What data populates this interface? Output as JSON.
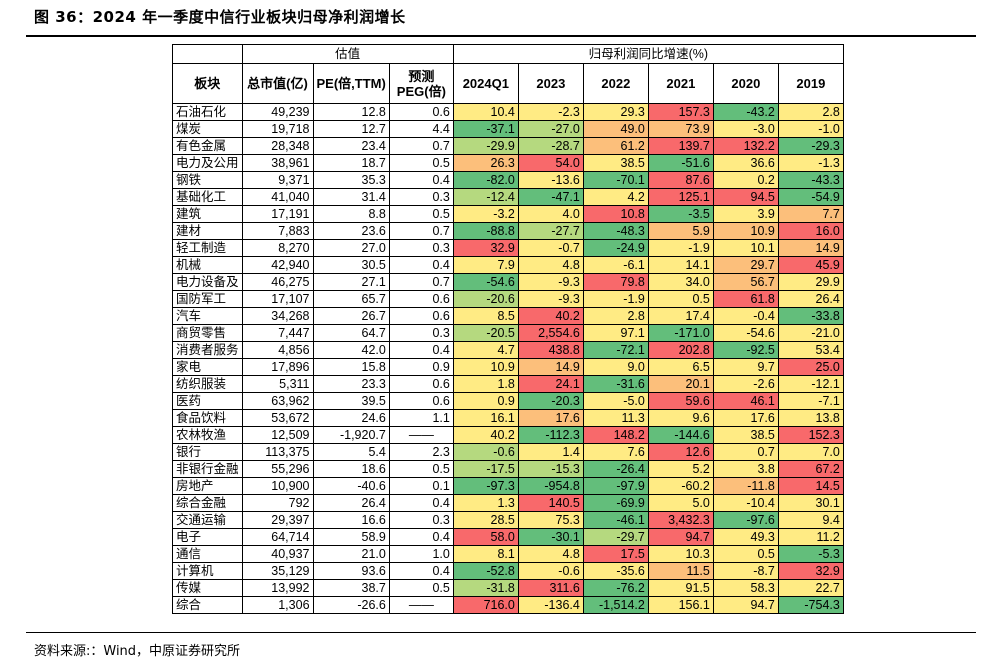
{
  "title": "图 36：2024 年一季度中信行业板块归母净利润增长",
  "source": "资料来源:：Wind，中原证券研究所",
  "header": {
    "valuation_group": "估值",
    "growth_group": "归母利润同比增速(%)",
    "sector": "板块",
    "mktcap": "总市值(亿)",
    "pe": "PE(倍,TTM)",
    "peg": "预测PEG(倍)",
    "years": [
      "2024Q1",
      "2023",
      "2022",
      "2021",
      "2020",
      "2019"
    ]
  },
  "colors": {
    "dark_green": "#63be7b",
    "light_green": "#b5d97f",
    "yellow": "#ffeb84",
    "orange": "#fcbf7b",
    "red": "#f8696b"
  },
  "rows": [
    {
      "sector": "石油石化",
      "mktcap": "49,239",
      "pe": "12.8",
      "peg": "0.6",
      "g": [
        "10.4",
        "-2.3",
        "29.3",
        "157.3",
        "-43.2",
        "2.8"
      ],
      "c": [
        "y",
        "y",
        "y",
        "r",
        "g",
        "y"
      ]
    },
    {
      "sector": "煤炭",
      "mktcap": "19,718",
      "pe": "12.7",
      "peg": "4.4",
      "g": [
        "-37.1",
        "-27.0",
        "49.0",
        "73.9",
        "-3.0",
        "-1.0"
      ],
      "c": [
        "g",
        "lg",
        "o",
        "o",
        "y",
        "y"
      ]
    },
    {
      "sector": "有色金属",
      "mktcap": "28,348",
      "pe": "23.4",
      "peg": "0.7",
      "g": [
        "-29.9",
        "-28.7",
        "61.2",
        "139.7",
        "132.2",
        "-29.3"
      ],
      "c": [
        "lg",
        "lg",
        "o",
        "r",
        "r",
        "g"
      ]
    },
    {
      "sector": "电力及公用",
      "mktcap": "38,961",
      "pe": "18.7",
      "peg": "0.5",
      "g": [
        "26.3",
        "54.0",
        "38.5",
        "-51.6",
        "36.6",
        "-1.3"
      ],
      "c": [
        "o",
        "r",
        "y",
        "g",
        "y",
        "y"
      ]
    },
    {
      "sector": "钢铁",
      "mktcap": "9,371",
      "pe": "35.3",
      "peg": "0.4",
      "g": [
        "-82.0",
        "-13.6",
        "-70.1",
        "87.6",
        "0.2",
        "-43.3"
      ],
      "c": [
        "g",
        "y",
        "g",
        "r",
        "y",
        "g"
      ]
    },
    {
      "sector": "基础化工",
      "mktcap": "41,040",
      "pe": "31.4",
      "peg": "0.3",
      "g": [
        "-12.4",
        "-47.1",
        "4.2",
        "125.1",
        "94.5",
        "-54.9"
      ],
      "c": [
        "lg",
        "g",
        "y",
        "r",
        "r",
        "g"
      ]
    },
    {
      "sector": "建筑",
      "mktcap": "17,191",
      "pe": "8.8",
      "peg": "0.5",
      "g": [
        "-3.2",
        "4.0",
        "10.8",
        "-3.5",
        "3.9",
        "7.7"
      ],
      "c": [
        "y",
        "y",
        "r",
        "g",
        "y",
        "o"
      ]
    },
    {
      "sector": "建材",
      "mktcap": "7,883",
      "pe": "23.6",
      "peg": "0.7",
      "g": [
        "-88.8",
        "-27.7",
        "-48.3",
        "5.9",
        "10.9",
        "16.0"
      ],
      "c": [
        "g",
        "lg",
        "g",
        "o",
        "o",
        "r"
      ]
    },
    {
      "sector": "轻工制造",
      "mktcap": "8,270",
      "pe": "27.0",
      "peg": "0.3",
      "g": [
        "32.9",
        "-0.7",
        "-24.9",
        "-1.9",
        "10.1",
        "14.9"
      ],
      "c": [
        "r",
        "y",
        "g",
        "y",
        "y",
        "o"
      ]
    },
    {
      "sector": "机械",
      "mktcap": "42,940",
      "pe": "30.5",
      "peg": "0.4",
      "g": [
        "7.9",
        "4.8",
        "-6.1",
        "14.1",
        "29.7",
        "45.9"
      ],
      "c": [
        "y",
        "y",
        "y",
        "y",
        "o",
        "r"
      ]
    },
    {
      "sector": "电力设备及",
      "mktcap": "46,275",
      "pe": "27.1",
      "peg": "0.7",
      "g": [
        "-54.6",
        "-9.3",
        "79.8",
        "34.0",
        "56.7",
        "29.9"
      ],
      "c": [
        "g",
        "y",
        "r",
        "y",
        "o",
        "y"
      ]
    },
    {
      "sector": "国防军工",
      "mktcap": "17,107",
      "pe": "65.7",
      "peg": "0.6",
      "g": [
        "-20.6",
        "-9.3",
        "-1.9",
        "0.5",
        "61.8",
        "26.4"
      ],
      "c": [
        "lg",
        "y",
        "y",
        "y",
        "r",
        "y"
      ]
    },
    {
      "sector": "汽车",
      "mktcap": "34,268",
      "pe": "26.7",
      "peg": "0.6",
      "g": [
        "8.5",
        "40.2",
        "2.8",
        "17.4",
        "-0.4",
        "-33.8"
      ],
      "c": [
        "y",
        "r",
        "y",
        "y",
        "y",
        "g"
      ]
    },
    {
      "sector": "商贸零售",
      "mktcap": "7,447",
      "pe": "64.7",
      "peg": "0.3",
      "g": [
        "-20.5",
        "2,554.6",
        "97.1",
        "-171.0",
        "-54.6",
        "-21.0"
      ],
      "c": [
        "lg",
        "r",
        "y",
        "g",
        "y",
        "y"
      ]
    },
    {
      "sector": "消费者服务",
      "mktcap": "4,856",
      "pe": "42.0",
      "peg": "0.4",
      "g": [
        "4.7",
        "438.8",
        "-72.1",
        "202.8",
        "-92.5",
        "53.4"
      ],
      "c": [
        "y",
        "r",
        "g",
        "r",
        "g",
        "y"
      ]
    },
    {
      "sector": "家电",
      "mktcap": "17,896",
      "pe": "15.8",
      "peg": "0.9",
      "g": [
        "10.9",
        "14.9",
        "9.0",
        "6.5",
        "9.7",
        "25.0"
      ],
      "c": [
        "y",
        "o",
        "y",
        "y",
        "y",
        "r"
      ]
    },
    {
      "sector": "纺织服装",
      "mktcap": "5,311",
      "pe": "23.3",
      "peg": "0.6",
      "g": [
        "1.8",
        "24.1",
        "-31.6",
        "20.1",
        "-2.6",
        "-12.1"
      ],
      "c": [
        "y",
        "r",
        "g",
        "o",
        "y",
        "y"
      ]
    },
    {
      "sector": "医药",
      "mktcap": "63,962",
      "pe": "39.5",
      "peg": "0.6",
      "g": [
        "0.9",
        "-20.3",
        "-5.0",
        "59.6",
        "46.1",
        "-7.1"
      ],
      "c": [
        "y",
        "g",
        "y",
        "r",
        "r",
        "y"
      ]
    },
    {
      "sector": "食品饮料",
      "mktcap": "53,672",
      "pe": "24.6",
      "peg": "1.1",
      "g": [
        "16.1",
        "17.6",
        "11.3",
        "9.6",
        "17.6",
        "13.8"
      ],
      "c": [
        "y",
        "o",
        "y",
        "y",
        "y",
        "y"
      ]
    },
    {
      "sector": "农林牧渔",
      "mktcap": "12,509",
      "pe": "-1,920.7",
      "peg": "——",
      "g": [
        "40.2",
        "-112.3",
        "148.2",
        "-144.6",
        "38.5",
        "152.3"
      ],
      "c": [
        "y",
        "g",
        "r",
        "g",
        "y",
        "r"
      ]
    },
    {
      "sector": "银行",
      "mktcap": "113,375",
      "pe": "5.4",
      "peg": "2.3",
      "g": [
        "-0.6",
        "1.4",
        "7.6",
        "12.6",
        "0.7",
        "7.0"
      ],
      "c": [
        "lg",
        "y",
        "y",
        "r",
        "y",
        "y"
      ]
    },
    {
      "sector": "非银行金融",
      "mktcap": "55,296",
      "pe": "18.6",
      "peg": "0.5",
      "g": [
        "-17.5",
        "-15.3",
        "-26.4",
        "5.2",
        "3.8",
        "67.2"
      ],
      "c": [
        "lg",
        "lg",
        "g",
        "y",
        "y",
        "r"
      ]
    },
    {
      "sector": "房地产",
      "mktcap": "10,900",
      "pe": "-40.6",
      "peg": "0.1",
      "g": [
        "-97.3",
        "-954.8",
        "-97.9",
        "-60.2",
        "-11.8",
        "14.5"
      ],
      "c": [
        "g",
        "g",
        "g",
        "y",
        "o",
        "r"
      ]
    },
    {
      "sector": "综合金融",
      "mktcap": "792",
      "pe": "26.4",
      "peg": "0.4",
      "g": [
        "1.3",
        "140.5",
        "-69.9",
        "5.0",
        "-10.4",
        "30.1"
      ],
      "c": [
        "y",
        "r",
        "g",
        "y",
        "y",
        "y"
      ]
    },
    {
      "sector": "交通运输",
      "mktcap": "29,397",
      "pe": "16.6",
      "peg": "0.3",
      "g": [
        "28.5",
        "75.3",
        "-46.1",
        "3,432.3",
        "-97.6",
        "9.4"
      ],
      "c": [
        "y",
        "y",
        "g",
        "r",
        "g",
        "y"
      ]
    },
    {
      "sector": "电子",
      "mktcap": "64,714",
      "pe": "58.9",
      "peg": "0.4",
      "g": [
        "58.0",
        "-30.1",
        "-29.7",
        "94.7",
        "49.3",
        "11.2"
      ],
      "c": [
        "r",
        "g",
        "lg",
        "r",
        "y",
        "y"
      ]
    },
    {
      "sector": "通信",
      "mktcap": "40,937",
      "pe": "21.0",
      "peg": "1.0",
      "g": [
        "8.1",
        "4.8",
        "17.5",
        "10.3",
        "0.5",
        "-5.3"
      ],
      "c": [
        "y",
        "y",
        "r",
        "y",
        "y",
        "g"
      ]
    },
    {
      "sector": "计算机",
      "mktcap": "35,129",
      "pe": "93.6",
      "peg": "0.4",
      "g": [
        "-52.8",
        "-0.6",
        "-35.6",
        "11.5",
        "-8.7",
        "32.9"
      ],
      "c": [
        "g",
        "y",
        "y",
        "o",
        "y",
        "r"
      ]
    },
    {
      "sector": "传媒",
      "mktcap": "13,992",
      "pe": "38.7",
      "peg": "0.5",
      "g": [
        "-31.8",
        "311.6",
        "-76.2",
        "91.5",
        "58.3",
        "22.7"
      ],
      "c": [
        "lg",
        "r",
        "g",
        "y",
        "y",
        "y"
      ]
    },
    {
      "sector": "综合",
      "mktcap": "1,306",
      "pe": "-26.6",
      "peg": "——",
      "g": [
        "716.0",
        "-136.4",
        "-1,514.2",
        "156.1",
        "94.7",
        "-754.3"
      ],
      "c": [
        "r",
        "y",
        "g",
        "y",
        "y",
        "g"
      ]
    }
  ]
}
